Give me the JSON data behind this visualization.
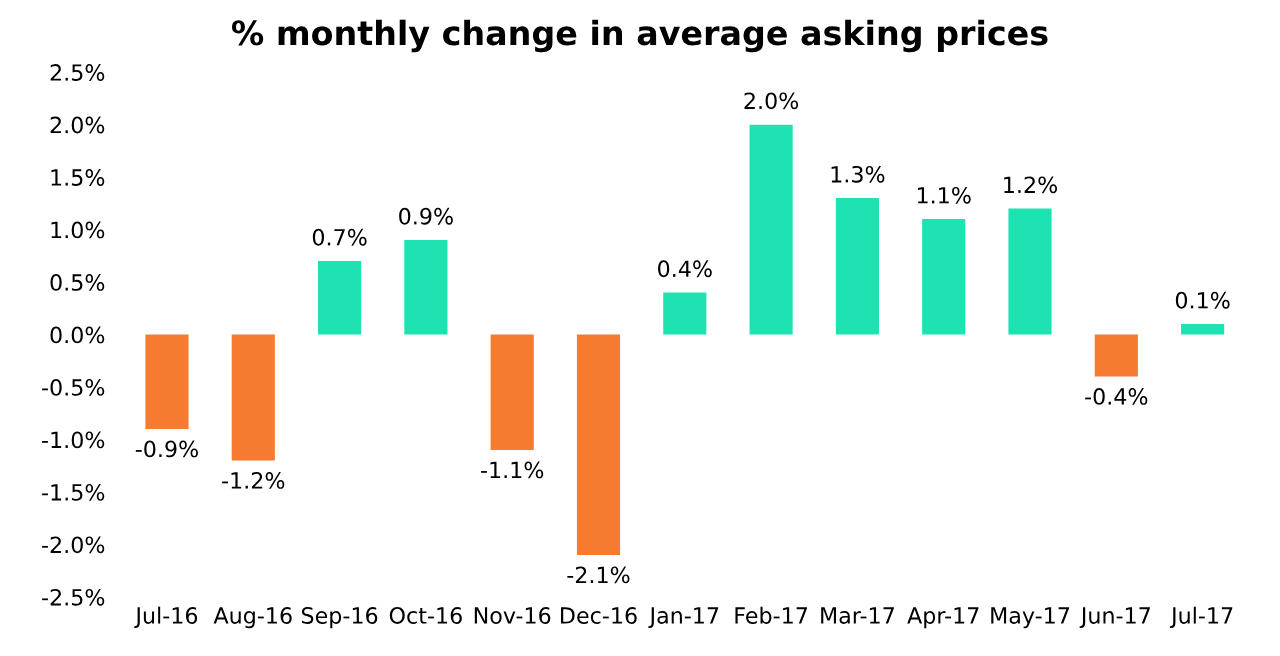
{
  "chart_data": {
    "type": "bar",
    "title": "% monthly change in average asking prices",
    "categories": [
      "Jul-16",
      "Aug-16",
      "Sep-16",
      "Oct-16",
      "Nov-16",
      "Dec-16",
      "Jan-17",
      "Feb-17",
      "Mar-17",
      "Apr-17",
      "May-17",
      "Jun-17",
      "Jul-17"
    ],
    "values": [
      -0.9,
      -1.2,
      0.7,
      0.9,
      -1.1,
      -2.1,
      0.4,
      2.0,
      1.3,
      1.1,
      1.2,
      -0.4,
      0.1
    ],
    "colors": [
      "#f47b2f",
      "#f47b2f",
      "#1de3b2",
      "#1de3b2",
      "#f47b2f",
      "#f47b2f",
      "#1de3b2",
      "#1de3b2",
      "#1de3b2",
      "#1de3b2",
      "#1de3b2",
      "#f47b2f",
      "#1de3b2"
    ],
    "value_labels": [
      "-0.9%",
      "-1.2%",
      "0.7%",
      "0.9%",
      "-1.1%",
      "-2.1%",
      "0.4%",
      "2.0%",
      "1.3%",
      "1.1%",
      "1.2%",
      "-0.4%",
      "0.1%"
    ],
    "ylim": [
      -2.5,
      2.5
    ],
    "yticks": [
      {
        "value": -2.5,
        "label": "-2.5%"
      },
      {
        "value": -2.0,
        "label": "-2.0%"
      },
      {
        "value": -1.5,
        "label": "-1.5%"
      },
      {
        "value": -1.0,
        "label": "-1.0%"
      },
      {
        "value": -0.5,
        "label": "-0.5%"
      },
      {
        "value": 0.0,
        "label": "0.0%"
      },
      {
        "value": 0.5,
        "label": "0.5%"
      },
      {
        "value": 1.0,
        "label": "1.0%"
      },
      {
        "value": 1.5,
        "label": "1.5%"
      },
      {
        "value": 2.0,
        "label": "2.0%"
      },
      {
        "value": 2.5,
        "label": "2.5%"
      }
    ],
    "grid": false,
    "legend": false
  }
}
